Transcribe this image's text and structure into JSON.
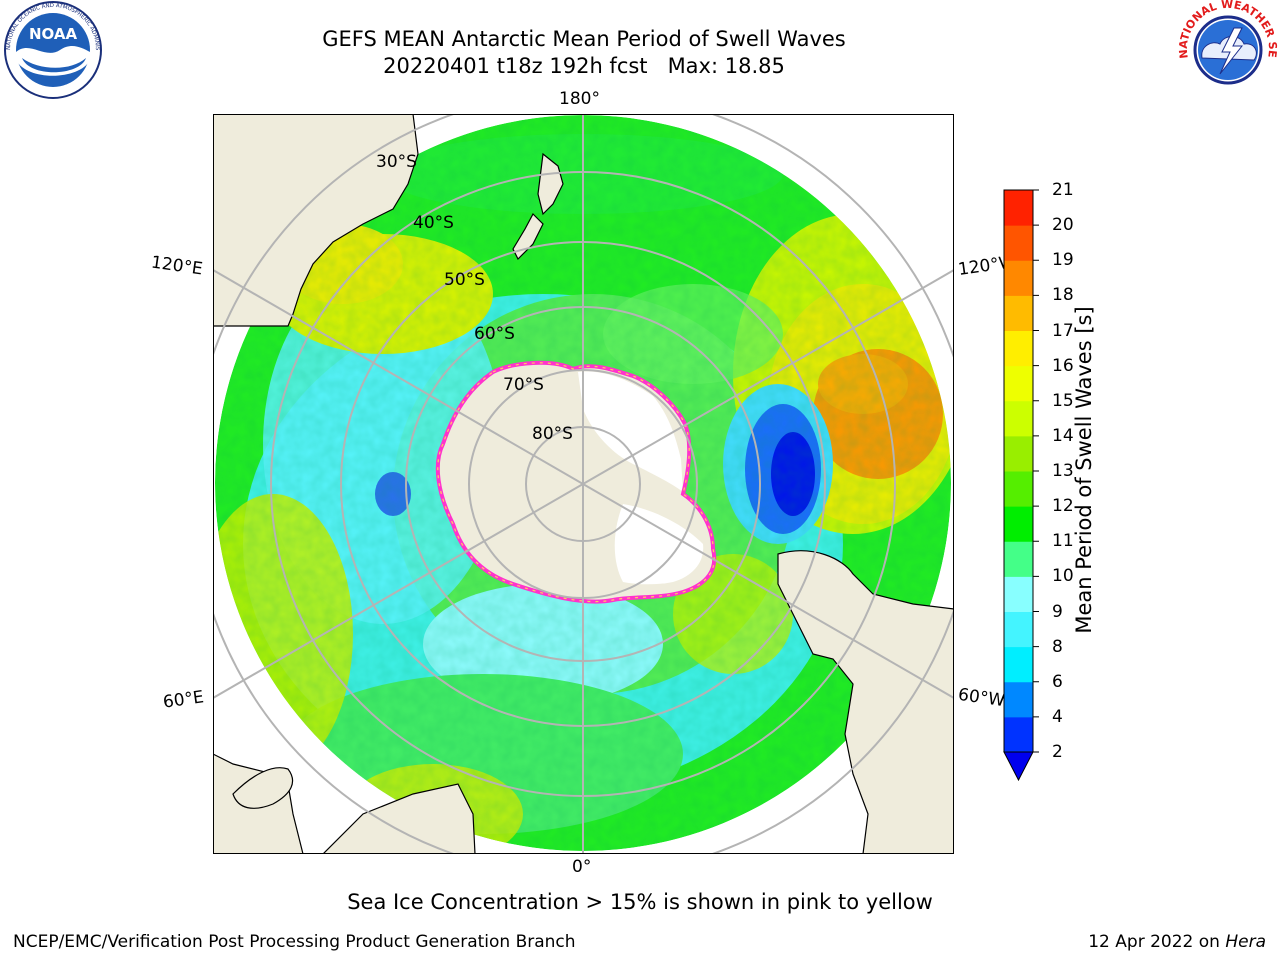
{
  "header": {
    "title_line1": "GEFS MEAN Antarctic Mean Period of Swell Waves",
    "title_line2": "20220401 t18z 192h fcst   Max: 18.85"
  },
  "logos": {
    "left": {
      "name": "NOAA",
      "text": "NOAA",
      "ring_text": "NATIONAL OCEANIC AND ATMOSPHERIC ADMINISTRATION · U.S. DEPARTMENT OF COMMERCE"
    },
    "right": {
      "name": "National Weather Service",
      "ring_text": "NATIONAL WEATHER SERVICE"
    }
  },
  "map": {
    "projection": "south-polar-stereographic",
    "longitude_labels": {
      "top": "180°",
      "bottom": "0°",
      "left_upper": "120°E",
      "left_lower": "60°E",
      "right_upper": "120°W",
      "right_lower": "60°W"
    },
    "latitude_labels": [
      "30°S",
      "40°S",
      "50°S",
      "60°S",
      "70°S",
      "80°S"
    ],
    "colors": {
      "land": "#efecdc",
      "grid": "#b4b4b4",
      "ice_edge": "#ff44cc"
    }
  },
  "colorbar": {
    "label": "Mean Period of Swell Waves [s]",
    "ticks": [
      "2",
      "4",
      "6",
      "8",
      "9",
      "10",
      "11",
      "12",
      "13",
      "14",
      "15",
      "16",
      "17",
      "18",
      "19",
      "20",
      "21"
    ],
    "colors": [
      "#0033ff",
      "#0088ff",
      "#00eeff",
      "#44f4ff",
      "#88ffff",
      "#44ff88",
      "#00ee00",
      "#55ee00",
      "#99ee00",
      "#ccff00",
      "#eeff00",
      "#ffee00",
      "#ffbb00",
      "#ff8800",
      "#ff5500",
      "#ff2200",
      "#ff0000"
    ],
    "extend_min_color": "#0000ee"
  },
  "note": "Sea Ice Concentration > 15% is shown in pink to yellow",
  "footer": {
    "left": "NCEP/EMC/Verification Post Processing Product Generation Branch",
    "right_date": "12 Apr 2022 on",
    "right_host": "Hera"
  }
}
